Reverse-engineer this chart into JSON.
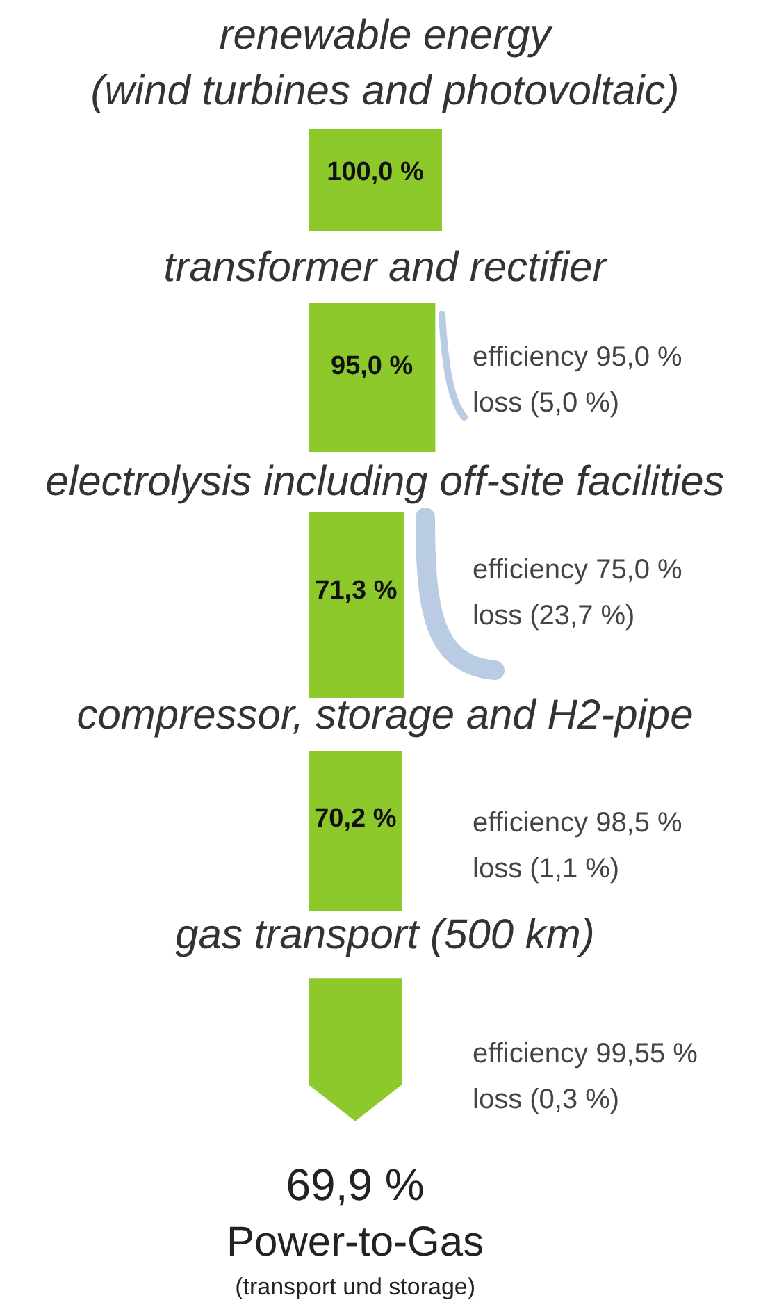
{
  "chart_data": {
    "type": "other",
    "title": "Power-to-Gas",
    "subtitle": "(transport und storage)",
    "categories": [
      "renewable energy\n(wind turbines and photovoltaic)",
      "transformer and rectifier",
      "electrolysis including off-site facilities",
      "compressor, storage and H2-pipe",
      "gas transport (500 km)"
    ],
    "values": [
      100.0,
      95.0,
      71.3,
      70.2,
      69.9
    ],
    "value_labels": [
      "100,0 %",
      "95,0 %",
      "71,3 %",
      "70,2 %",
      "69,9 %"
    ],
    "colors": [
      "#8dc92a",
      "#8dc92a",
      "#8dc92a",
      "#8dc92a",
      "#8dc92a"
    ],
    "annotations": [
      "efficiency 95,0 %\nloss (5,0 %)",
      "efficiency 75,0 %\nloss (23,7 %)",
      "efficiency 98,5 %\nloss (1,1 %)",
      "efficiency 99,55 %\nloss (0,3 %)"
    ]
  }
}
